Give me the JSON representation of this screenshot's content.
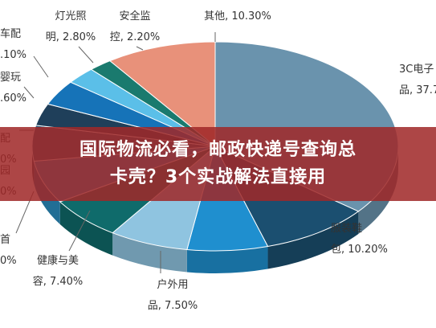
{
  "banner": {
    "line1": "国际物流必看，邮政快递号查询总",
    "line2": "卡壳？3个实战解法直接用"
  },
  "chart_data": {
    "type": "pie",
    "title": "",
    "slices": [
      {
        "label": "3C电子产品",
        "value": 37.7,
        "color": "#6a93ad",
        "text": [
          "3C电子",
          "品, 37.7"
        ]
      },
      {
        "label": "服装鞋包",
        "value": 10.2,
        "color": "#1b4f70",
        "text": [
          "服装鞋",
          "包, 10.20%"
        ]
      },
      {
        "label": "户外用品",
        "value": 7.5,
        "color": "#1f8fcf",
        "text": [
          "户外用",
          "品, 7.50%"
        ]
      },
      {
        "label": "健康与美容",
        "value": 7.4,
        "color": "#8fc4e0",
        "text": [
          "健康与美",
          "容, 7.40%"
        ]
      },
      {
        "label": "首饰",
        "value": 7.0,
        "color": "#0f6b6b",
        "text": [
          "首",
          "0%"
        ]
      },
      {
        "label": "家居园艺",
        "value": 7.0,
        "color": "#2c8dbf",
        "text": [
          "园",
          "0%"
        ]
      },
      {
        "label": "汽配",
        "value": 5.8,
        "color": "#2f5a7a",
        "text": [
          "配",
          "0%"
        ]
      },
      {
        "label": "母婴玩具",
        "value": 3.6,
        "color": "#1f3f5a",
        "text": [
          "婴玩",
          ".60%"
        ]
      },
      {
        "label": "汽车配件",
        "value": 4.1,
        "color": "#1673b8",
        "text": [
          "车配",
          ".10%"
        ]
      },
      {
        "label": "灯光照明",
        "value": 2.8,
        "color": "#5bbfe8",
        "text": [
          "灯光照",
          "明, 2.80%"
        ]
      },
      {
        "label": "安全监控",
        "value": 2.2,
        "color": "#1a7a6e",
        "text": [
          "安全监",
          "控, 2.20%"
        ]
      },
      {
        "label": "其他",
        "value": 10.3,
        "color": "#e8917a",
        "text": [
          "其他, 10.30%"
        ]
      }
    ]
  }
}
